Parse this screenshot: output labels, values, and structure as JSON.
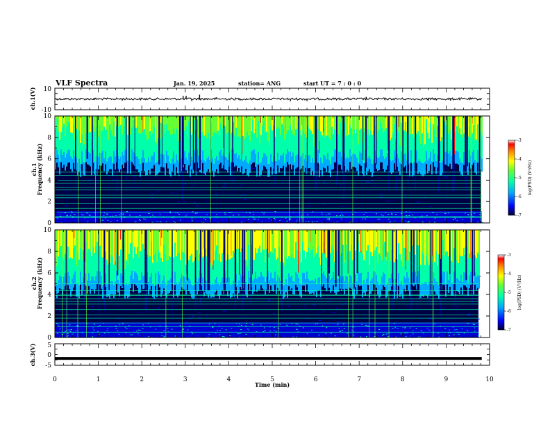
{
  "header": {
    "title": "VLF Spectra",
    "date": "Jan. 19, 2025",
    "station": "station= ANG",
    "start_ut": "start  UT =   7 : 0  : 0"
  },
  "colors": {
    "colormap": [
      "#000033",
      "#00007a",
      "#0000ff",
      "#00aaff",
      "#00ffaa",
      "#66ff33",
      "#ffff00",
      "#ff8800",
      "#ff0000",
      "#ffffff"
    ],
    "trace": "#000000"
  },
  "chart_data": [
    {
      "type": "line",
      "name": "ch1_waveform",
      "ylabel": "ch.1(V)",
      "ylim": [
        -10,
        10
      ],
      "yticks": [
        "10",
        "-10"
      ],
      "xlim": [
        0,
        10
      ],
      "baseline": 0,
      "spikes": [
        {
          "x": 2.95,
          "y": 3
        },
        {
          "x": 3.02,
          "y": 3
        },
        {
          "x": 3.33,
          "y": 4
        },
        {
          "x": 3.15,
          "y": -2
        },
        {
          "x": 3.72,
          "y": 1.5
        },
        {
          "x": 5.42,
          "y": -2
        },
        {
          "x": 5.8,
          "y": -2
        },
        {
          "x": 7.16,
          "y": 2
        },
        {
          "x": 8.6,
          "y": -1.5
        },
        {
          "x": 9.1,
          "y": -1.5
        },
        {
          "x": 1.55,
          "y": -1.5
        },
        {
          "x": 0.9,
          "y": -1
        }
      ]
    },
    {
      "type": "heatmap",
      "name": "ch1_spectrogram",
      "ylabel": "ch.1\nFrequency (kHz)",
      "ylim": [
        0,
        10
      ],
      "yticks": [
        "0",
        "2",
        "4",
        "6",
        "8",
        "10"
      ],
      "xlim": [
        0,
        9.82
      ],
      "colorbar": {
        "label": "log(PSD) (V²/Hz)",
        "ticks": [
          "-3",
          "-4",
          "-5",
          "-6",
          "-7"
        ],
        "range": [
          -7,
          -3
        ]
      },
      "lines_khz": [
        0.5,
        0.6,
        1.0,
        1.35,
        1.8,
        2.35,
        2.6,
        3.1,
        3.35,
        3.7,
        4.0,
        4.45,
        4.75
      ],
      "low_band_khz": [
        0,
        1.1
      ],
      "high_band_khz": [
        6.2,
        10
      ]
    },
    {
      "type": "heatmap",
      "name": "ch2_spectrogram",
      "ylabel": "ch.2\nFrequency (kHz)",
      "ylim": [
        0,
        10
      ],
      "yticks": [
        "0",
        "2",
        "4",
        "6",
        "8",
        "10"
      ],
      "xlim": [
        0,
        9.82
      ],
      "colorbar": {
        "label": "log(PSD) (V²/Hz)",
        "ticks": [
          "-3",
          "-4",
          "-5",
          "-6",
          "-7"
        ],
        "range": [
          -7,
          -3
        ]
      },
      "lines_khz": [
        0.5,
        1.0,
        1.35,
        1.8,
        2.1,
        2.6,
        3.1,
        3.35,
        3.6,
        3.9,
        4.0,
        4.35,
        5.0
      ],
      "low_band_khz": [
        0,
        1.4
      ],
      "high_band_khz": [
        5.5,
        10
      ]
    },
    {
      "type": "line",
      "name": "ch3_waveform",
      "ylabel": "ch.3(V)",
      "ylim": [
        -5,
        5
      ],
      "yticks": [
        "5",
        "0",
        "-5"
      ],
      "xlim": [
        0,
        10
      ],
      "constant_value": -1.8
    }
  ],
  "xaxis": {
    "label": "Time (min)",
    "ticks": [
      "0",
      "1",
      "2",
      "3",
      "4",
      "5",
      "6",
      "7",
      "8",
      "9",
      "10"
    ],
    "range": [
      0,
      10
    ]
  }
}
